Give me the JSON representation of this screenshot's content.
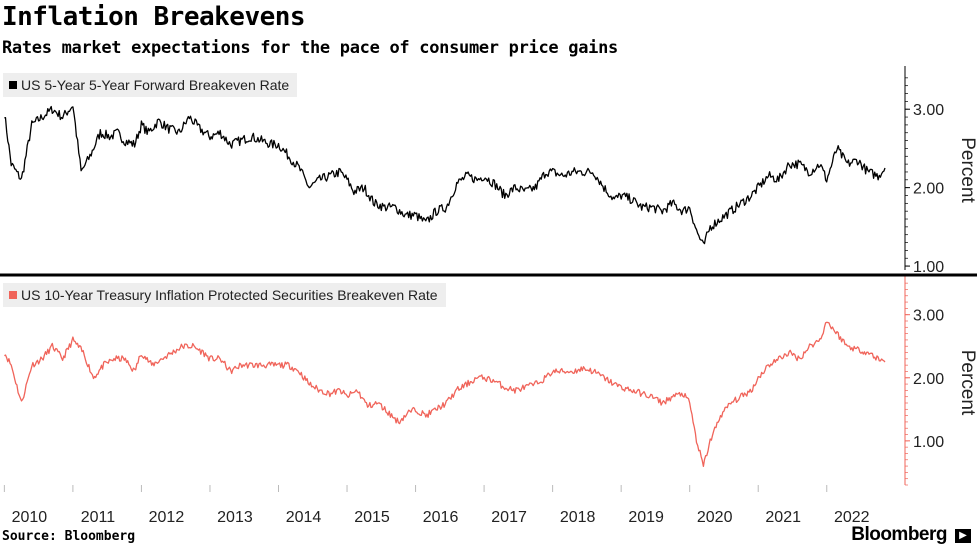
{
  "header": {
    "title": "Inflation Breakevens",
    "subtitle": "Rates market expectations for the pace of consumer price gains"
  },
  "footer": {
    "source": "Source: Bloomberg",
    "brand": "Bloomberg",
    "brand_icon": "bloomberg-terminal-icon"
  },
  "colors": {
    "series1": "#000000",
    "series2": "#f0645a",
    "divider": "#000000",
    "legend_bg": "#eeeeee"
  },
  "chart_data": [
    {
      "type": "line",
      "legend": "US 5-Year 5-Year Forward Breakeven Rate",
      "ylabel": "Percent",
      "ylim": [
        0.95,
        3.5
      ],
      "yticks": [
        "1.00",
        "2.00",
        "3.00"
      ],
      "ytick_values": [
        1.0,
        2.0,
        3.0
      ],
      "x_range": [
        2009.98,
        2022.85
      ],
      "grid": false,
      "legend_position": "top-left",
      "series": [
        {
          "name": "US 5-Year 5-Year Forward Breakeven Rate",
          "x": [
            2010.0,
            2010.1,
            2010.25,
            2010.4,
            2010.55,
            2010.7,
            2010.85,
            2011.0,
            2011.12,
            2011.25,
            2011.4,
            2011.55,
            2011.65,
            2011.75,
            2011.9,
            2012.0,
            2012.1,
            2012.25,
            2012.4,
            2012.55,
            2012.7,
            2012.85,
            2013.0,
            2013.15,
            2013.3,
            2013.45,
            2013.6,
            2013.75,
            2013.9,
            2014.0,
            2014.15,
            2014.3,
            2014.45,
            2014.6,
            2014.75,
            2014.9,
            2015.0,
            2015.1,
            2015.25,
            2015.4,
            2015.55,
            2015.7,
            2015.85,
            2016.0,
            2016.15,
            2016.3,
            2016.45,
            2016.6,
            2016.75,
            2016.9,
            2017.0,
            2017.15,
            2017.3,
            2017.45,
            2017.6,
            2017.75,
            2017.9,
            2018.0,
            2018.15,
            2018.3,
            2018.45,
            2018.6,
            2018.75,
            2018.9,
            2019.0,
            2019.15,
            2019.3,
            2019.45,
            2019.6,
            2019.75,
            2019.9,
            2020.0,
            2020.1,
            2020.2,
            2020.3,
            2020.45,
            2020.6,
            2020.75,
            2020.9,
            2021.0,
            2021.15,
            2021.3,
            2021.45,
            2021.6,
            2021.75,
            2021.9,
            2022.0,
            2022.15,
            2022.3,
            2022.45,
            2022.6,
            2022.75,
            2022.85
          ],
          "y": [
            2.95,
            2.3,
            2.1,
            2.8,
            2.9,
            3.0,
            2.9,
            3.05,
            2.2,
            2.4,
            2.7,
            2.65,
            2.7,
            2.6,
            2.55,
            2.8,
            2.7,
            2.85,
            2.75,
            2.7,
            2.9,
            2.75,
            2.65,
            2.7,
            2.55,
            2.6,
            2.65,
            2.6,
            2.55,
            2.55,
            2.4,
            2.25,
            2.0,
            2.1,
            2.15,
            2.2,
            2.1,
            1.95,
            2.0,
            1.8,
            1.75,
            1.75,
            1.65,
            1.65,
            1.55,
            1.7,
            1.75,
            2.05,
            2.15,
            2.1,
            2.15,
            2.05,
            1.9,
            2.0,
            1.95,
            2.0,
            2.2,
            2.2,
            2.15,
            2.2,
            2.2,
            2.2,
            2.0,
            1.85,
            1.9,
            1.85,
            1.75,
            1.75,
            1.7,
            1.8,
            1.7,
            1.75,
            1.45,
            1.25,
            1.5,
            1.6,
            1.7,
            1.8,
            1.9,
            2.0,
            2.15,
            2.1,
            2.3,
            2.3,
            2.2,
            2.3,
            2.1,
            2.5,
            2.3,
            2.35,
            2.2,
            2.15,
            2.25
          ]
        }
      ]
    },
    {
      "type": "line",
      "legend": "US 10-Year Treasury Inflation Protected Securities Breakeven Rate",
      "ylabel": "Percent",
      "ylim": [
        0.3,
        3.55
      ],
      "yticks": [
        "1.00",
        "2.00",
        "3.00"
      ],
      "ytick_values": [
        1.0,
        2.0,
        3.0
      ],
      "x_range": [
        2009.98,
        2022.85
      ],
      "xticks": [
        "2010",
        "2011",
        "2012",
        "2013",
        "2014",
        "2015",
        "2016",
        "2017",
        "2018",
        "2019",
        "2020",
        "2021",
        "2022"
      ],
      "grid": false,
      "legend_position": "top-left",
      "series": [
        {
          "name": "US 10-Year Treasury Inflation Protected Securities Breakeven Rate",
          "x": [
            2010.0,
            2010.1,
            2010.25,
            2010.4,
            2010.55,
            2010.7,
            2010.85,
            2011.0,
            2011.15,
            2011.3,
            2011.45,
            2011.6,
            2011.75,
            2011.9,
            2012.0,
            2012.15,
            2012.3,
            2012.45,
            2012.6,
            2012.75,
            2012.9,
            2013.0,
            2013.15,
            2013.3,
            2013.45,
            2013.6,
            2013.75,
            2013.9,
            2014.0,
            2014.15,
            2014.3,
            2014.45,
            2014.6,
            2014.75,
            2014.9,
            2015.0,
            2015.15,
            2015.3,
            2015.45,
            2015.6,
            2015.75,
            2015.9,
            2016.0,
            2016.15,
            2016.3,
            2016.45,
            2016.6,
            2016.75,
            2016.9,
            2017.0,
            2017.15,
            2017.3,
            2017.45,
            2017.6,
            2017.75,
            2017.9,
            2018.0,
            2018.15,
            2018.3,
            2018.45,
            2018.6,
            2018.75,
            2018.9,
            2019.0,
            2019.15,
            2019.3,
            2019.45,
            2019.6,
            2019.75,
            2019.9,
            2020.0,
            2020.1,
            2020.2,
            2020.3,
            2020.45,
            2020.6,
            2020.75,
            2020.9,
            2021.0,
            2021.15,
            2021.3,
            2021.45,
            2021.6,
            2021.75,
            2021.9,
            2022.0,
            2022.15,
            2022.3,
            2022.45,
            2022.6,
            2022.75,
            2022.85
          ],
          "y": [
            2.4,
            2.2,
            1.6,
            2.2,
            2.3,
            2.5,
            2.3,
            2.6,
            2.4,
            2.0,
            2.2,
            2.3,
            2.3,
            2.1,
            2.4,
            2.2,
            2.3,
            2.4,
            2.5,
            2.5,
            2.4,
            2.3,
            2.3,
            2.1,
            2.2,
            2.2,
            2.2,
            2.2,
            2.2,
            2.2,
            2.1,
            1.9,
            1.8,
            1.75,
            1.8,
            1.7,
            1.8,
            1.55,
            1.6,
            1.45,
            1.3,
            1.45,
            1.5,
            1.4,
            1.5,
            1.6,
            1.8,
            1.9,
            2.0,
            2.0,
            1.95,
            1.85,
            1.8,
            1.85,
            1.9,
            2.0,
            2.1,
            2.1,
            2.1,
            2.15,
            2.1,
            2.0,
            1.9,
            1.85,
            1.8,
            1.75,
            1.7,
            1.6,
            1.7,
            1.75,
            1.6,
            1.0,
            0.6,
            1.0,
            1.4,
            1.6,
            1.7,
            1.8,
            2.0,
            2.2,
            2.3,
            2.4,
            2.3,
            2.5,
            2.6,
            2.9,
            2.7,
            2.5,
            2.45,
            2.4,
            2.3,
            2.25
          ]
        }
      ]
    }
  ]
}
